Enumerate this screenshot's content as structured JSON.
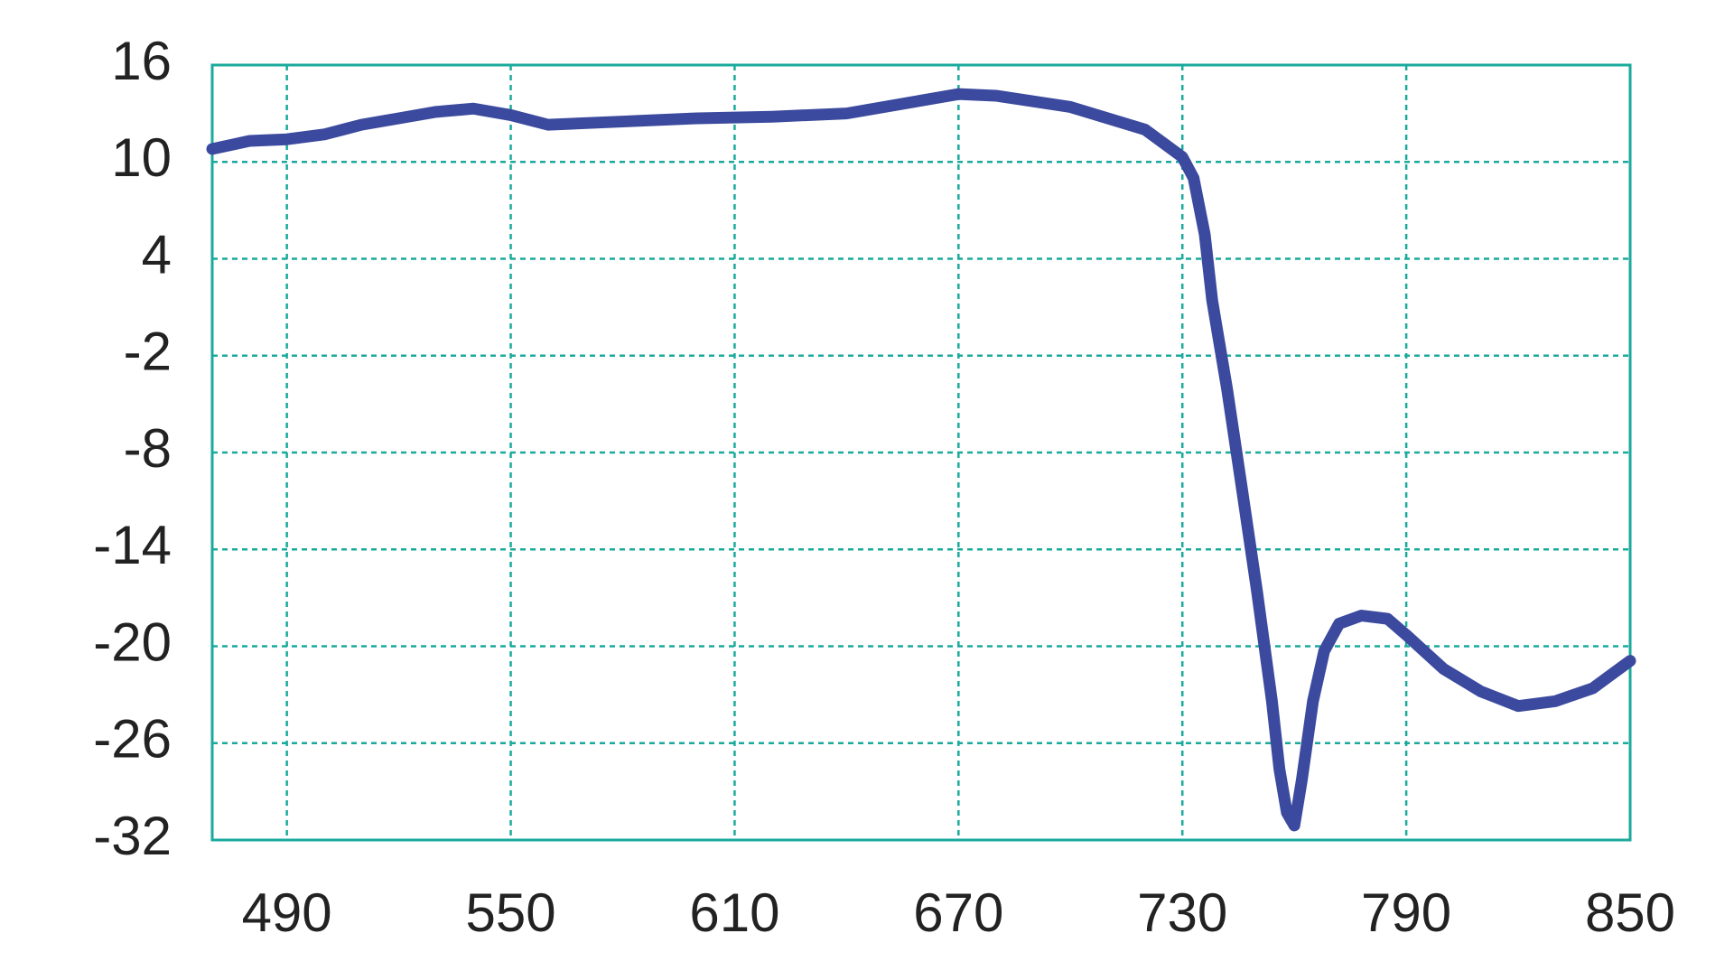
{
  "chart_data": {
    "type": "line",
    "x": [
      470,
      480,
      490,
      500,
      510,
      520,
      530,
      540,
      550,
      560,
      580,
      600,
      620,
      640,
      660,
      670,
      680,
      700,
      720,
      730,
      733,
      736,
      738,
      742,
      746,
      750,
      754,
      756,
      758,
      760,
      762,
      765,
      768,
      772,
      778,
      785,
      790,
      800,
      810,
      820,
      830,
      840,
      850
    ],
    "series": [
      {
        "color": "#3b4a9e",
        "values": [
          10.8,
          11.3,
          11.4,
          11.7,
          12.3,
          12.7,
          13.1,
          13.3,
          12.9,
          12.3,
          12.5,
          12.7,
          12.8,
          13.0,
          13.8,
          14.2,
          14.1,
          13.4,
          12.0,
          10.3,
          9.0,
          5.5,
          1.4,
          -4.1,
          -10.3,
          -16.6,
          -23.4,
          -27.6,
          -30.3,
          -31.1,
          -28.3,
          -23.4,
          -20.3,
          -18.6,
          -18.1,
          -18.3,
          -19.3,
          -21.4,
          -22.8,
          -23.7,
          -23.4,
          -22.6,
          -20.9
        ]
      }
    ],
    "xlim": [
      470,
      850
    ],
    "xticks": [
      490,
      550,
      610,
      670,
      730,
      790,
      850
    ],
    "ylim": [
      -32,
      16
    ],
    "yticks": [
      -32,
      -26,
      -20,
      -14,
      -8,
      -2,
      4,
      10,
      16
    ],
    "grid": true,
    "grid_color": "#1aaa9c"
  }
}
